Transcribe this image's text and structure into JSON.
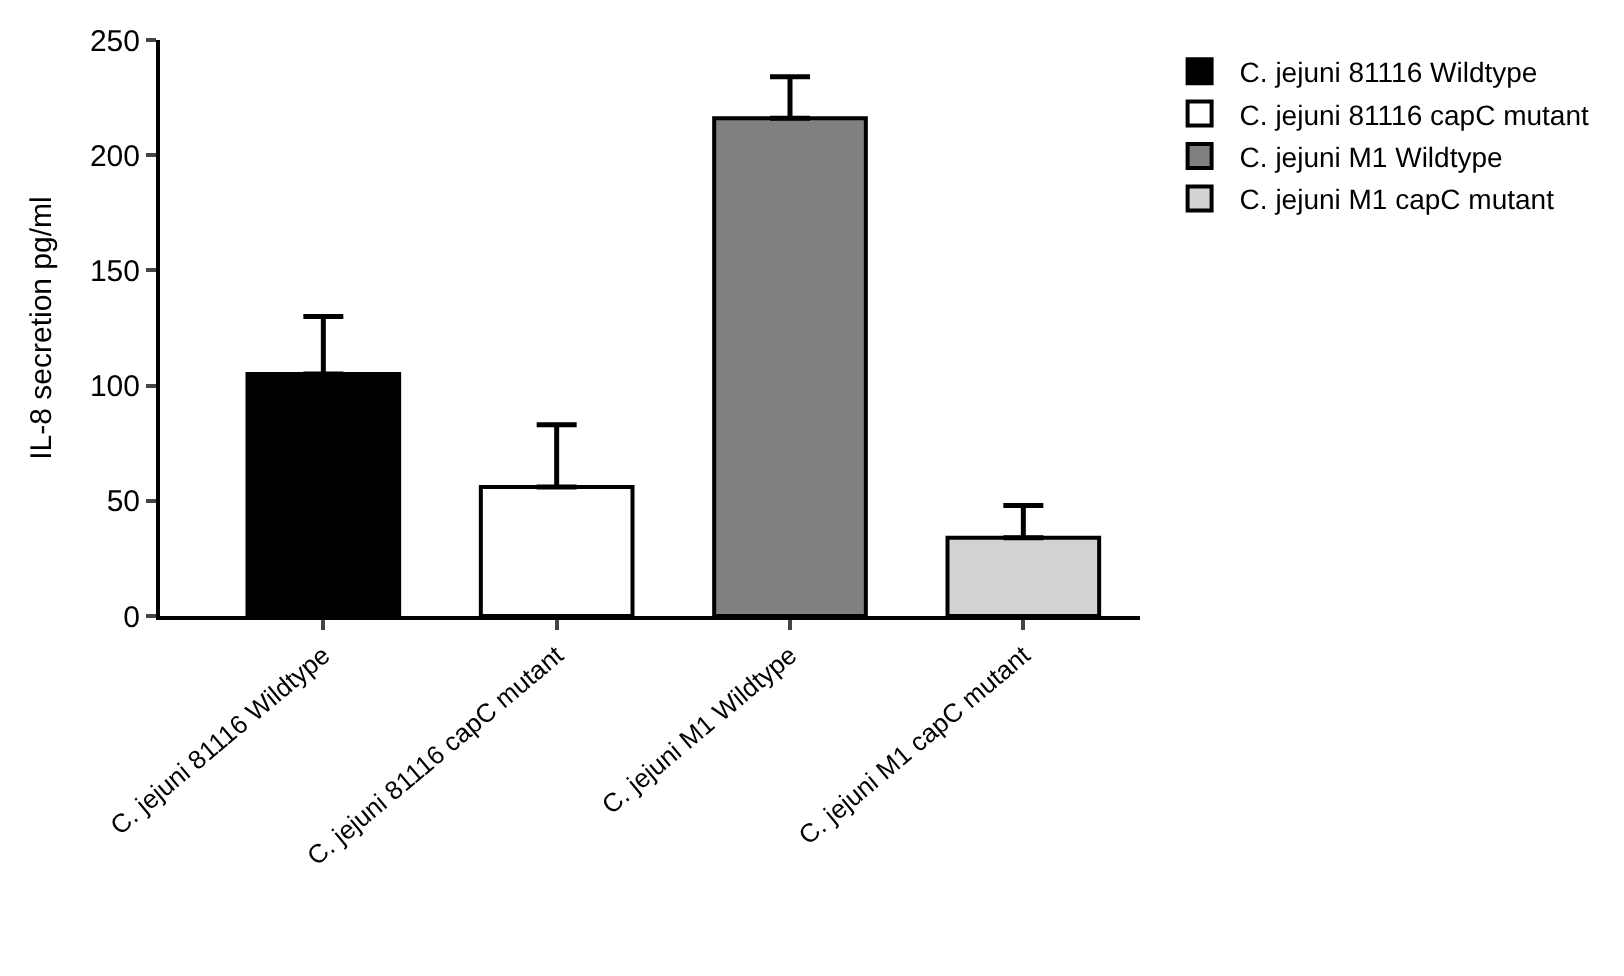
{
  "chart_data": {
    "type": "bar",
    "ylabel": "IL-8 secretion pg/ml",
    "categories": [
      "C. jejuni 81116 Wildtype",
      "C. jejuni 81116 capC mutant",
      "C. jejuni M1 Wildtype",
      "C. jejuni M1 capC mutant"
    ],
    "series": [
      {
        "name": "C. jejuni 81116 Wildtype",
        "color": "#000000",
        "values": [
          105,
          null,
          null,
          null
        ],
        "errors": [
          25,
          null,
          null,
          null
        ]
      },
      {
        "name": "C. jejuni 81116 capC mutant",
        "color": "#ffffff",
        "values": [
          null,
          56,
          null,
          null
        ],
        "errors": [
          null,
          27,
          null,
          null
        ]
      },
      {
        "name": "C. jejuni M1 Wildtype",
        "color": "#808080",
        "values": [
          null,
          null,
          216,
          null
        ],
        "errors": [
          null,
          null,
          18,
          null
        ]
      },
      {
        "name": "C. jejuni M1 capC mutant",
        "color": "#d3d3d3",
        "values": [
          null,
          null,
          null,
          34
        ],
        "errors": [
          null,
          null,
          null,
          14
        ]
      }
    ],
    "ylim": [
      0,
      250
    ],
    "yticks": [
      0,
      50,
      100,
      150,
      200,
      250
    ],
    "legend": "top right"
  }
}
